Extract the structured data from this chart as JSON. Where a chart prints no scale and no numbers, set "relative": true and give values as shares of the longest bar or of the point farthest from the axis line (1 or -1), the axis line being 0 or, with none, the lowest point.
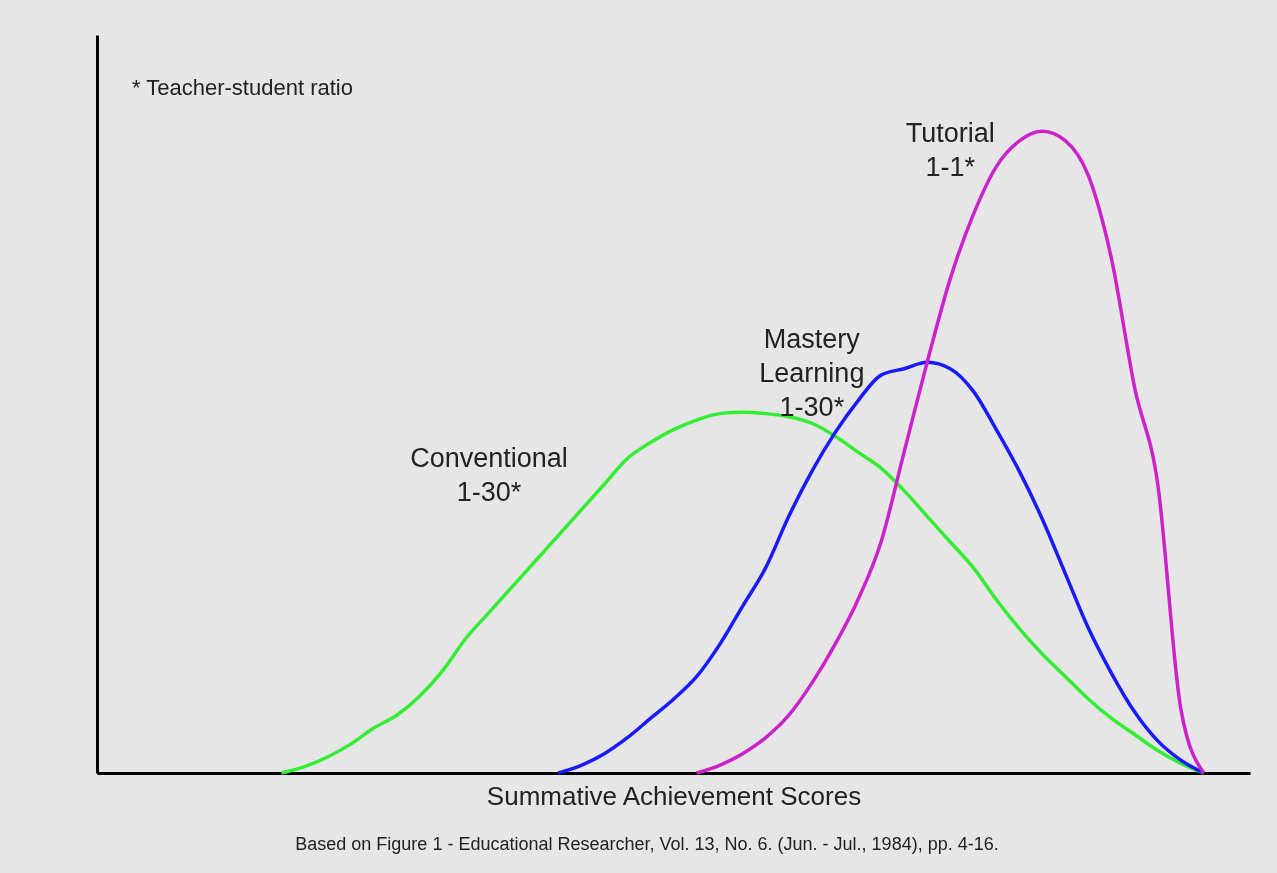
{
  "chart_data": {
    "type": "line",
    "relative": true,
    "xlabel": "Summative Achievement Scores",
    "annotations": [
      "* Teacher-student ratio",
      "Based on Figure 1 - Educational Researcher, Vol. 13, No. 6. (Jun. - Jul., 1984), pp. 4-16."
    ],
    "categories": [
      null,
      null,
      null,
      null,
      null,
      null,
      null,
      null,
      null,
      null,
      null,
      null,
      null,
      null,
      null,
      null,
      null,
      null,
      null,
      null,
      null,
      null,
      null,
      null,
      null,
      null,
      null,
      null,
      null,
      null,
      null,
      null,
      null,
      null,
      null,
      null,
      null,
      null,
      null,
      null,
      null,
      null,
      null,
      null,
      null,
      null,
      null,
      null,
      null,
      null,
      null
    ],
    "series": [
      {
        "name": "Conventional\n1-30*",
        "color": "#33ee33",
        "values": [
          null,
          null,
          null,
          null,
          null,
          null,
          null,
          null,
          0,
          0.01,
          0.025,
          0.045,
          0.07,
          0.09,
          0.12,
          0.16,
          0.21,
          0.25,
          0.29,
          0.33,
          0.37,
          0.41,
          0.45,
          0.49,
          0.515,
          0.535,
          0.55,
          0.56,
          0.562,
          0.56,
          0.555,
          0.545,
          0.525,
          0.5,
          0.475,
          0.44,
          0.4,
          0.36,
          0.32,
          0.27,
          0.225,
          0.185,
          0.15,
          0.115,
          0.085,
          0.06,
          0.035,
          0.015,
          0,
          null,
          null
        ]
      },
      {
        "name": "Mastery\nLearning\n1-30*",
        "color": "#1a1aff",
        "values": [
          null,
          null,
          null,
          null,
          null,
          null,
          null,
          null,
          null,
          null,
          null,
          null,
          null,
          null,
          null,
          null,
          null,
          null,
          null,
          null,
          0,
          0.012,
          0.03,
          0.055,
          0.085,
          0.115,
          0.15,
          0.2,
          0.26,
          0.32,
          0.4,
          0.47,
          0.53,
          0.58,
          0.62,
          0.63,
          0.64,
          0.63,
          0.595,
          0.535,
          0.47,
          0.395,
          0.31,
          0.225,
          0.155,
          0.095,
          0.05,
          0.02,
          0,
          null,
          null
        ]
      },
      {
        "name": "Tutorial\n1-1*",
        "color": "#cc22cc",
        "values": [
          null,
          null,
          null,
          null,
          null,
          null,
          null,
          null,
          null,
          null,
          null,
          null,
          null,
          null,
          null,
          null,
          null,
          null,
          null,
          null,
          null,
          null,
          null,
          null,
          null,
          null,
          0,
          0.012,
          0.03,
          0.055,
          0.09,
          0.14,
          0.2,
          0.27,
          0.36,
          0.5,
          0.64,
          0.77,
          0.87,
          0.945,
          0.985,
          1,
          0.985,
          0.93,
          0.8,
          0.6,
          0.45,
          0.1,
          0,
          null,
          null
        ]
      }
    ],
    "grid": false,
    "legend": false,
    "marker": "none",
    "line_style": "solid"
  }
}
